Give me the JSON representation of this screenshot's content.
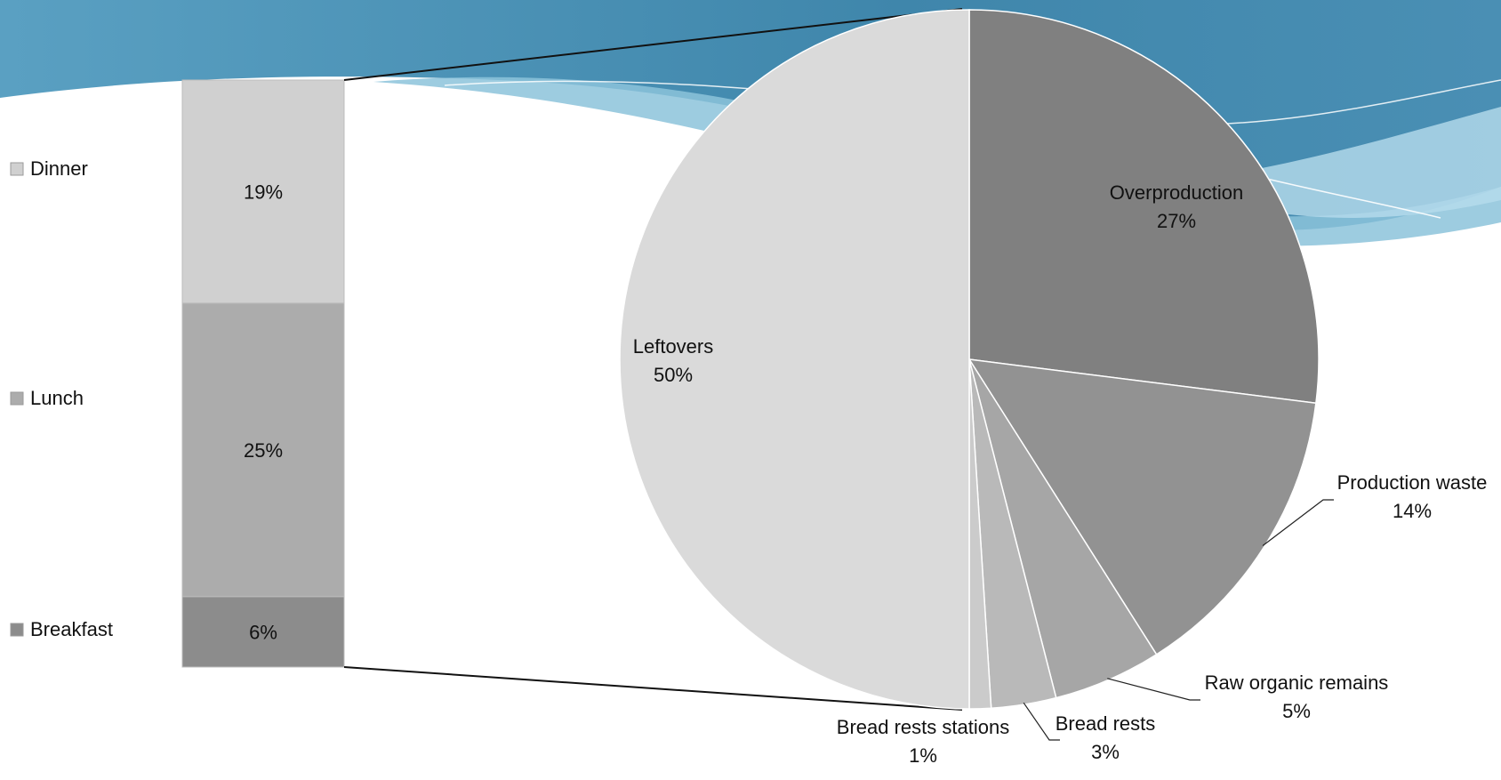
{
  "chart_data": [
    {
      "type": "bar",
      "stacked": true,
      "title": "",
      "series": [
        {
          "name": "Breakfast",
          "value": 6,
          "label": "6%",
          "color": "#8c8c8c"
        },
        {
          "name": "Lunch",
          "value": 25,
          "label": "25%",
          "color": "#acacac"
        },
        {
          "name": "Dinner",
          "value": 19,
          "label": "19%",
          "color": "#d0d0d0"
        }
      ],
      "legend": {
        "placement": "left",
        "items": [
          {
            "label": "Dinner",
            "color": "#d0d0d0"
          },
          {
            "label": "Lunch",
            "color": "#acacac"
          },
          {
            "label": "Breakfast",
            "color": "#8c8c8c"
          }
        ]
      }
    },
    {
      "type": "pie",
      "title": "",
      "slices": [
        {
          "name": "Overproduction",
          "value": 27,
          "label": "27%",
          "color": "#808080"
        },
        {
          "name": "Production waste",
          "value": 14,
          "label": "14%",
          "color": "#929292"
        },
        {
          "name": "Raw organic remains",
          "value": 5,
          "label": "5%",
          "color": "#a6a6a6"
        },
        {
          "name": "Bread rests",
          "value": 3,
          "label": "3%",
          "color": "#b9b9b9"
        },
        {
          "name": "Bread rests stations",
          "value": 1,
          "label": "1%",
          "color": "#cbcbcb"
        },
        {
          "name": "Leftovers",
          "value": 50,
          "label": "50%",
          "color": "#dadada"
        }
      ]
    }
  ],
  "colors": {
    "banner_dark": "#3a7fa3",
    "banner_mid": "#5aa3c4",
    "banner_light": "#8cc3da",
    "connector": "#111111"
  }
}
